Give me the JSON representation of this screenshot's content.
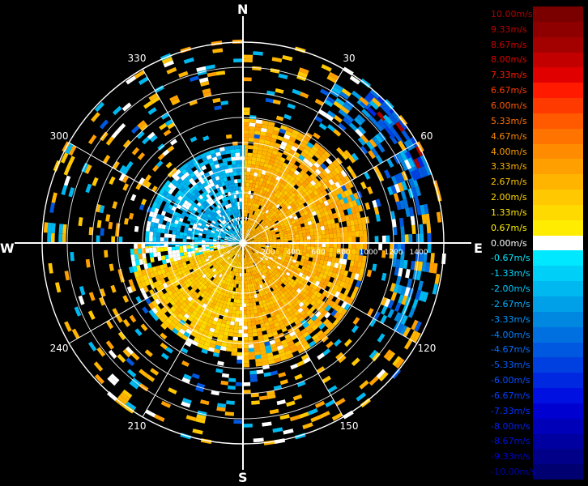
{
  "chart_data": {
    "type": "heatmap",
    "subtype": "polar-radar-velocity (PPI)",
    "cardinals": {
      "north": "N",
      "east": "E",
      "south": "S",
      "west": "W"
    },
    "bearing_labels": [
      "30",
      "60",
      "120",
      "150",
      "210",
      "240",
      "300",
      "330"
    ],
    "bearings_deg": [
      30,
      60,
      120,
      150,
      210,
      240,
      300,
      330
    ],
    "range_tick_labels": [
      "200",
      "400",
      "600",
      "800",
      "1000",
      "1200",
      "1400"
    ],
    "range_max": 1600,
    "range_ring_values": [
      200,
      400,
      600,
      800,
      1000,
      1200,
      1400,
      1600
    ],
    "colorscale": {
      "unit": "m/s",
      "labels": [
        "10.00m/s",
        "9.33m/s",
        "8.67m/s",
        "8.00m/s",
        "7.33m/s",
        "6.67m/s",
        "6.00m/s",
        "5.33m/s",
        "4.67m/s",
        "4.00m/s",
        "3.33m/s",
        "2.67m/s",
        "2.00m/s",
        "1.33m/s",
        "0.67m/s",
        "0.00m/s",
        "-0.67m/s",
        "-1.33m/s",
        "-2.00m/s",
        "-2.67m/s",
        "-3.33m/s",
        "-4.00m/s",
        "-4.67m/s",
        "-5.33m/s",
        "-6.00m/s",
        "-6.67m/s",
        "-7.33m/s",
        "-8.00m/s",
        "-8.67m/s",
        "-9.33m/s",
        "-10.00m/s"
      ],
      "values": [
        10,
        9.33,
        8.67,
        8,
        7.33,
        6.67,
        6,
        5.33,
        4.67,
        4,
        3.33,
        2.67,
        2,
        1.33,
        0.67,
        0,
        -0.67,
        -1.33,
        -2,
        -2.67,
        -3.33,
        -4,
        -4.67,
        -5.33,
        -6,
        -6.67,
        -7.33,
        -8,
        -8.67,
        -9.33,
        -10
      ],
      "colors": [
        "#7a0000",
        "#8e0000",
        "#a30000",
        "#c20000",
        "#e00000",
        "#ff1a00",
        "#ff3a00",
        "#ff5a00",
        "#ff7400",
        "#ff8c00",
        "#ffa000",
        "#ffb400",
        "#ffc800",
        "#ffda00",
        "#ffec00",
        "#ffffff",
        "#00e8ff",
        "#00d0f8",
        "#00b8f0",
        "#00a0e8",
        "#0088e0",
        "#0070e0",
        "#0058e0",
        "#0040e0",
        "#0028e0",
        "#0010e0",
        "#0000d0",
        "#0000b8",
        "#0000a0",
        "#000088",
        "#000070"
      ],
      "label_colors": [
        "#b00000",
        "#c00000",
        "#d00000",
        "#e00000",
        "#ff1a00",
        "#ff3a00",
        "#ff5a00",
        "#ff7000",
        "#ff8800",
        "#ffa000",
        "#ffb400",
        "#ffc800",
        "#ffd800",
        "#ffe800",
        "#fff200",
        "#ffffff",
        "#00e8ff",
        "#00d8ff",
        "#00c8ff",
        "#00b0ff",
        "#0098ff",
        "#0080ff",
        "#0070ff",
        "#0060ff",
        "#0050ff",
        "#0040ff",
        "#0030ff",
        "#0020f0",
        "#0010e0",
        "#0000d0",
        "#0000b0"
      ]
    },
    "regions": [
      {
        "bearing_start": 0,
        "bearing_end": 180,
        "range_start": 0,
        "range_end": 980,
        "velocity": 2.67,
        "fill": "near-solid"
      },
      {
        "bearing_start": 180,
        "bearing_end": 255,
        "range_start": 0,
        "range_end": 900,
        "velocity": 2.0,
        "fill": "near-solid"
      },
      {
        "bearing_start": 255,
        "bearing_end": 268,
        "range_start": 0,
        "range_end": 900,
        "velocity": 0.0,
        "fill": "mixed"
      },
      {
        "bearing_start": 268,
        "bearing_end": 360,
        "range_start": 0,
        "range_end": 780,
        "velocity": -2.0,
        "fill": "mixed"
      },
      {
        "bearing_start": 30,
        "bearing_end": 120,
        "range_start": 1200,
        "range_end": 1500,
        "velocity": -3.33,
        "fill": "rings"
      },
      {
        "bearing_start": 40,
        "bearing_end": 70,
        "range_start": 1450,
        "range_end": 1600,
        "velocity": -4.67,
        "fill": "arc"
      },
      {
        "bearing_start": 0,
        "bearing_end": 360,
        "range_start": 780,
        "range_end": 1600,
        "velocity": 2.67,
        "fill": "sparse"
      }
    ]
  }
}
